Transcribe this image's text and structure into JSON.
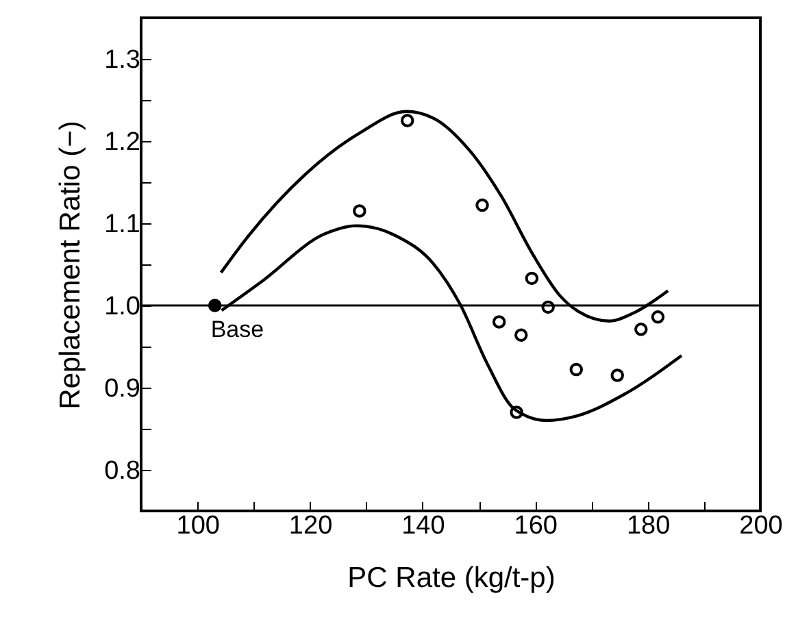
{
  "chart_data": {
    "type": "scatter",
    "xlabel": "PC Rate  (kg/t-p)",
    "ylabel": "Replacement Ratio  (−)",
    "xlim": [
      90,
      200
    ],
    "ylim": [
      0.75,
      1.35
    ],
    "xticks": [
      {
        "value": 90,
        "label": null
      },
      100,
      {
        "value": 110,
        "label": null
      },
      120,
      {
        "value": 130,
        "label": null
      },
      140,
      {
        "value": 150,
        "label": null
      },
      160,
      {
        "value": 170,
        "label": null
      },
      180,
      {
        "value": 190,
        "label": null
      },
      200
    ],
    "yticks": [
      {
        "value": 0.75,
        "label": null
      },
      0.8,
      {
        "value": 0.85,
        "label": null
      },
      0.9,
      {
        "value": 0.95,
        "label": null
      },
      {
        "value": 1,
        "label": "1.0"
      },
      {
        "value": 1.05,
        "label": null
      },
      1.1,
      {
        "value": 1.15,
        "label": null
      },
      1.2,
      {
        "value": 1.25,
        "label": null
      },
      1.3,
      {
        "value": 1.35,
        "label": null
      }
    ],
    "marker": "circle",
    "grid": false,
    "series": [
      {
        "type": "scatter",
        "color": "#000000",
        "x": [
          128.8,
          137.3,
          150.6,
          159.4,
          162.3,
          153.6,
          157.5,
          156.7,
          167.3,
          174.6,
          178.8,
          181.8
        ],
        "values": [
          1.115,
          1.225,
          1.122,
          1.033,
          0.998,
          0.98,
          0.964,
          0.87,
          0.922,
          0.915,
          0.971,
          0.986
        ]
      },
      {
        "type": "scatter",
        "color": "#000000",
        "marker": "circle",
        "x": [
          103.1
        ],
        "values": [
          1.0
        ]
      },
      {
        "type": "line",
        "color": "#000000",
        "marker": "none",
        "x": [
          104.2,
          109.0,
          119.4,
          129.1,
          137.1,
          141.9,
          148.3,
          153.9,
          159.6,
          164.4,
          167.6,
          173.2,
          177.2,
          183.6
        ],
        "values": [
          1.04,
          1.084,
          1.161,
          1.211,
          1.236,
          1.228,
          1.189,
          1.134,
          1.062,
          1.012,
          0.993,
          0.981,
          0.99,
          1.018
        ]
      },
      {
        "type": "line",
        "color": "#000000",
        "marker": "none",
        "x": [
          104.3,
          111.4,
          122.6,
          128.3,
          135.5,
          141.9,
          146.7,
          151.5,
          156.3,
          161.9,
          167.6,
          175.6,
          186.0
        ],
        "values": [
          0.994,
          1.029,
          1.087,
          1.097,
          1.084,
          1.051,
          1.001,
          0.929,
          0.874,
          0.86,
          0.866,
          0.891,
          0.939
        ]
      }
    ],
    "ref_lines": [
      {
        "axis": "y",
        "value": 1.0,
        "color": "#000000"
      }
    ],
    "annotations": [
      {
        "text": "Base",
        "x": 103.1,
        "y": 1.0
      }
    ]
  }
}
